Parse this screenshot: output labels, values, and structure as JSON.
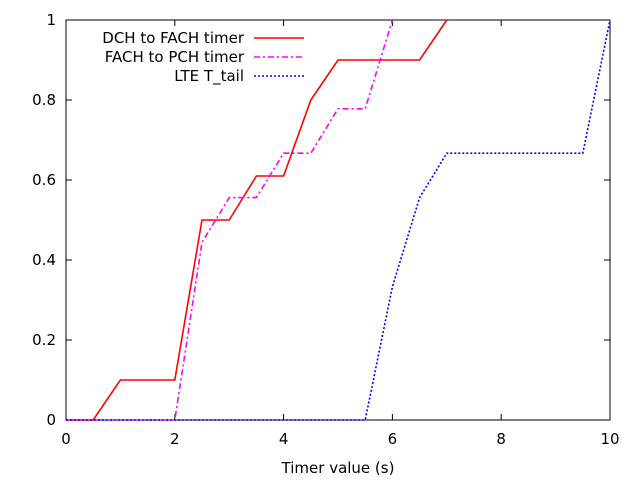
{
  "chart_data": {
    "type": "line",
    "xlabel": "Timer value (s)",
    "ylabel": "",
    "xlim": [
      0,
      10
    ],
    "ylim": [
      0,
      1
    ],
    "x_ticks": [
      0,
      2,
      4,
      6,
      8,
      10
    ],
    "y_ticks": [
      0,
      0.2,
      0.4,
      0.6,
      0.8,
      1
    ],
    "x_tick_labels": [
      "0",
      "2",
      "4",
      "6",
      "8",
      "10"
    ],
    "y_tick_labels": [
      "0",
      "0.2",
      "0.4",
      "0.6",
      "0.8",
      "1"
    ],
    "grid": false,
    "legend_position": "top-left",
    "series": [
      {
        "name": "DCH to FACH timer",
        "color": "#ff0000",
        "dash": "solid",
        "x": [
          0,
          0.5,
          1,
          1.5,
          2,
          2.5,
          3,
          3.5,
          4,
          4.5,
          5,
          5.5,
          6,
          6.5,
          7
        ],
        "y": [
          0,
          0,
          0.1,
          0.1,
          0.1,
          0.5,
          0.5,
          0.61,
          0.61,
          0.8,
          0.9,
          0.9,
          0.9,
          0.9,
          1
        ]
      },
      {
        "name": "FACH to PCH timer",
        "color": "#ff00ff",
        "dash": "dash-dot",
        "x": [
          0,
          1.5,
          2,
          2.5,
          3,
          3.5,
          4,
          4.5,
          5,
          5.5,
          6
        ],
        "y": [
          0,
          0,
          0,
          0.444,
          0.556,
          0.556,
          0.667,
          0.667,
          0.778,
          0.778,
          1
        ]
      },
      {
        "name": "LTE T_tail",
        "color": "#0000ff",
        "dash": "dotted",
        "x": [
          0,
          5,
          5.5,
          6,
          6.5,
          7,
          7.5,
          8,
          8.5,
          9,
          9.5,
          10
        ],
        "y": [
          0,
          0,
          0,
          0.333,
          0.556,
          0.667,
          0.667,
          0.667,
          0.667,
          0.667,
          0.667,
          1
        ]
      }
    ]
  }
}
